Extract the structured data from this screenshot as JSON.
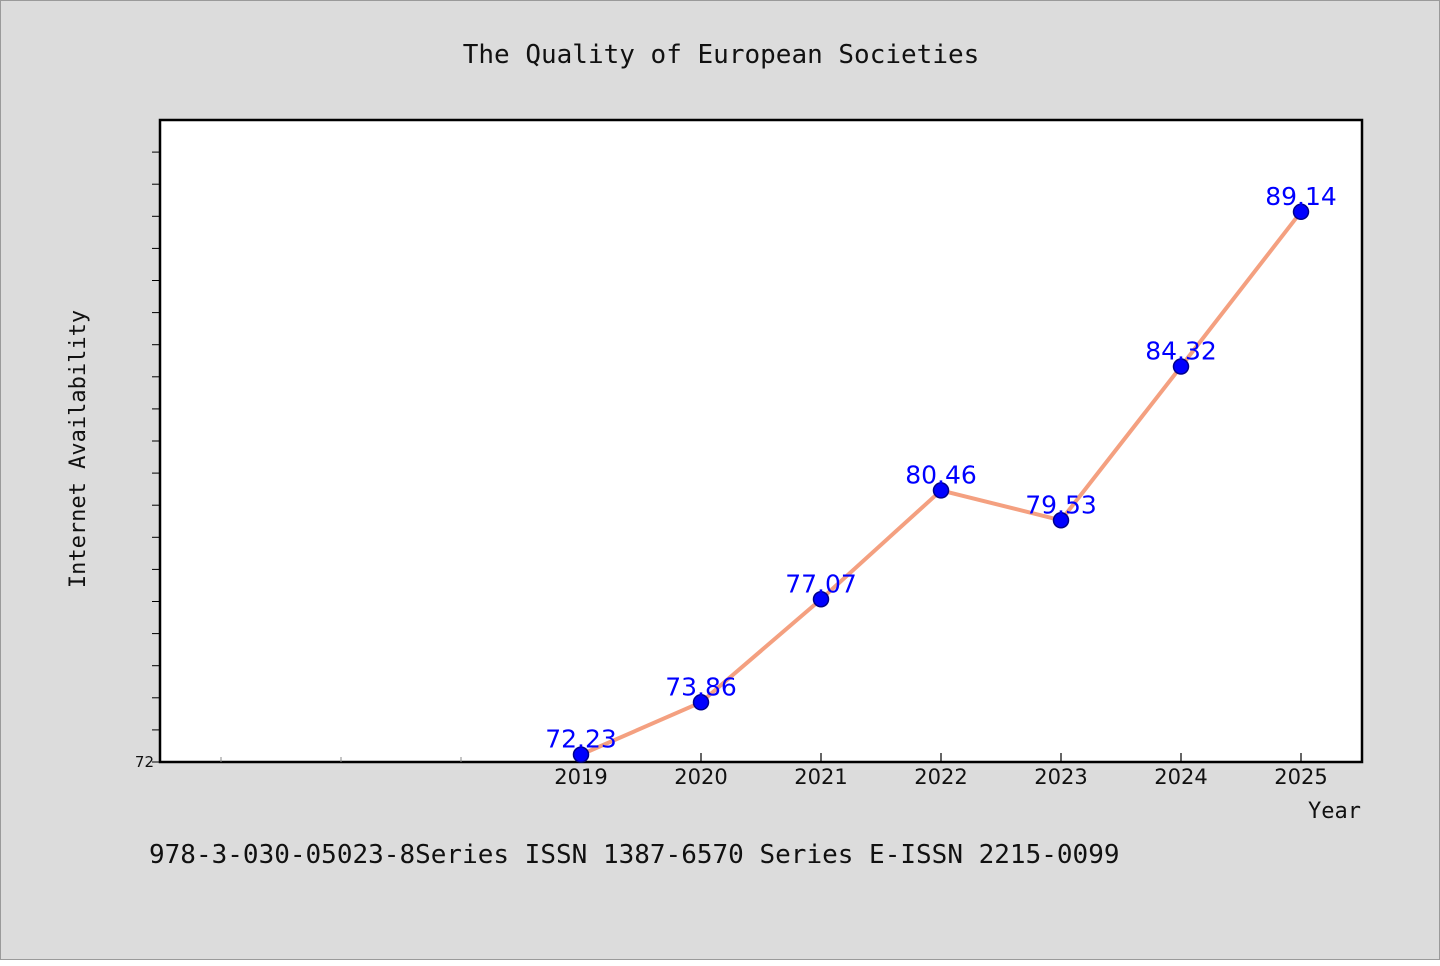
{
  "chart_data": {
    "type": "line",
    "title": "The Quality of European Societies",
    "xlabel": "Year",
    "ylabel": "Internet Availability",
    "categories": [
      "2019",
      "2020",
      "2021",
      "2022",
      "2023",
      "2024",
      "2025"
    ],
    "series": [
      {
        "values": [
          72.23,
          73.86,
          77.07,
          80.46,
          79.53,
          84.32,
          89.14
        ],
        "labels": [
          "72.23",
          "73.86",
          "77.07",
          "80.46",
          "79.53",
          "84.32",
          "89.14"
        ]
      }
    ],
    "ylim": [
      72,
      92
    ],
    "yticks_labeled": [
      "72"
    ],
    "grid": false,
    "colors": {
      "line": "#f4a080",
      "marker": "#0000ff",
      "marker_edge": "#00008b",
      "label": "#0000ff",
      "background": "#dcdcdc",
      "plot_bg": "#ffffff"
    }
  },
  "footer": {
    "text": "978-3-030-05023-8Series ISSN 1387-6570 Series E-ISSN 2215-0099"
  }
}
